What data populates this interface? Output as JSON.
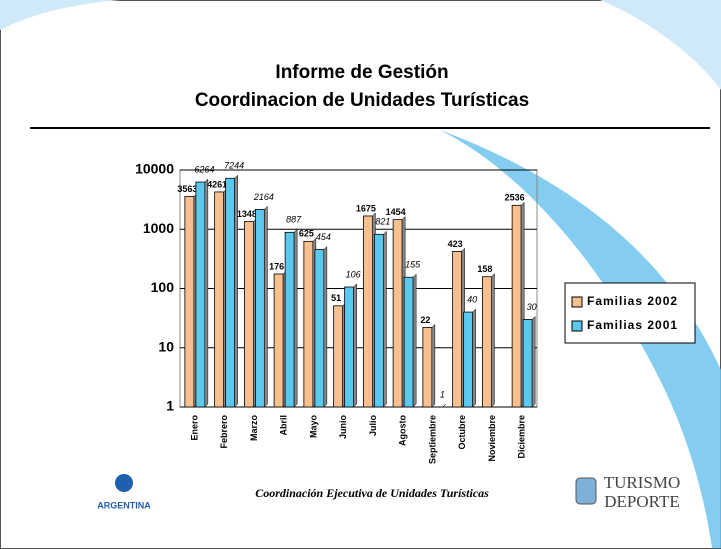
{
  "slide": {
    "title": [
      "Informe de Gestión",
      "Coordinacion de Unidades Turísticas"
    ],
    "footer": "Coordinación Ejecutiva de Unidades Turísticas",
    "logos": [
      "ARGENTINA",
      "TURISMO",
      "DEPORTE"
    ]
  },
  "chart_data": {
    "type": "bar",
    "categories": [
      "Enero",
      "Febrero",
      "Marzo",
      "Abril",
      "Mayo",
      "Junio",
      "Julio",
      "Agosto",
      "Septiembre",
      "Octubre",
      "Noviembre",
      "Diciembre"
    ],
    "series": [
      {
        "name": "Familias 2002",
        "color": "#f9c08f",
        "values": [
          3563,
          4261,
          1348,
          176,
          625,
          51,
          1675,
          1454,
          22,
          423,
          158,
          2536
        ]
      },
      {
        "name": "Familias 2001",
        "color": "#5bc8f0",
        "values": [
          6264,
          7244,
          2164,
          887,
          454,
          106,
          821,
          155,
          1,
          40,
          null,
          30
        ]
      }
    ],
    "ylim": [
      1,
      10000
    ],
    "yticks": [
      1,
      10,
      100,
      1000,
      10000
    ],
    "log_scale": true,
    "grid": true,
    "legend": "right"
  }
}
